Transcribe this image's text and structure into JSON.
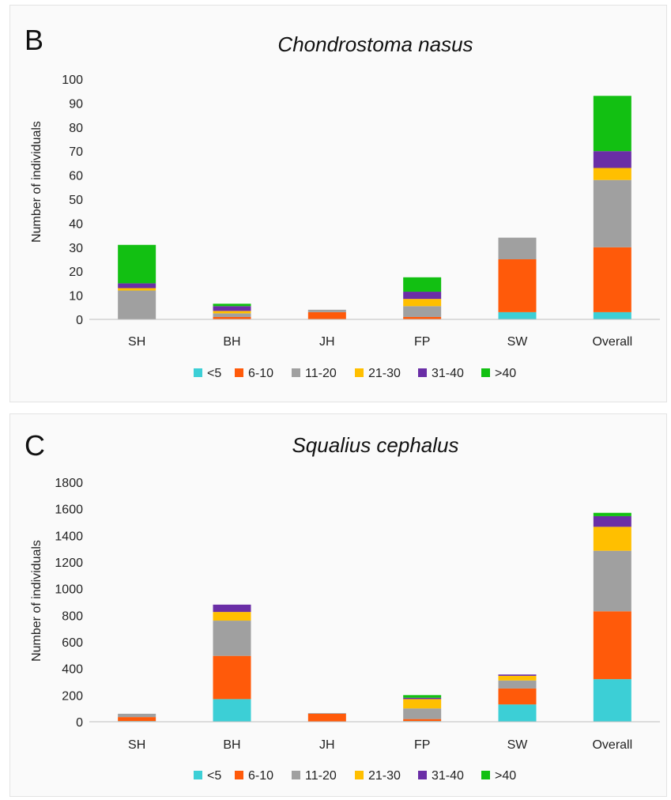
{
  "colors": {
    "<5": "#3ccfd6",
    "6-10": "#ff5a0a",
    "11-20": "#a0a0a0",
    "21-30": "#ffbf00",
    "31-40": "#6a2ea6",
    ">40": "#12c012"
  },
  "chart_data": [
    {
      "type": "bar",
      "stacked": true,
      "panel_letter": "B",
      "title": "Chondrostoma nasus",
      "ylabel": "Number of individuals",
      "ylim": [
        0,
        100
      ],
      "yticks": [
        0,
        10,
        20,
        30,
        40,
        50,
        60,
        70,
        80,
        90,
        100
      ],
      "categories": [
        "SH",
        "BH",
        "JH",
        "FP",
        "SW",
        "Overall"
      ],
      "legend_position": "bottom",
      "series": [
        {
          "name": "<5",
          "values": [
            0,
            0,
            0,
            0,
            3,
            3
          ]
        },
        {
          "name": "6-10",
          "values": [
            0,
            1,
            3,
            1,
            22,
            27
          ]
        },
        {
          "name": "11-20",
          "values": [
            12,
            1.5,
            1,
            4.5,
            9,
            28
          ]
        },
        {
          "name": "21-30",
          "values": [
            1,
            1,
            0,
            3,
            0,
            5
          ]
        },
        {
          "name": "31-40",
          "values": [
            2,
            2,
            0,
            3,
            0,
            7
          ]
        },
        {
          "name": ">40",
          "values": [
            16,
            1,
            0,
            6,
            0,
            23
          ]
        }
      ]
    },
    {
      "type": "bar",
      "stacked": true,
      "panel_letter": "C",
      "title": "Squalius cephalus",
      "ylabel": "Number of individuals",
      "ylim": [
        0,
        1800
      ],
      "yticks": [
        0,
        200,
        400,
        600,
        800,
        1000,
        1200,
        1400,
        1600,
        1800
      ],
      "categories": [
        "SH",
        "BH",
        "JH",
        "FP",
        "SW",
        "Overall"
      ],
      "legend_position": "bottom",
      "series": [
        {
          "name": "<5",
          "values": [
            5,
            170,
            0,
            5,
            130,
            320
          ]
        },
        {
          "name": "6-10",
          "values": [
            30,
            325,
            60,
            15,
            120,
            510
          ]
        },
        {
          "name": "11-20",
          "values": [
            25,
            265,
            5,
            80,
            60,
            455
          ]
        },
        {
          "name": "21-30",
          "values": [
            0,
            65,
            0,
            70,
            35,
            180
          ]
        },
        {
          "name": "31-40",
          "values": [
            0,
            55,
            0,
            10,
            10,
            80
          ]
        },
        {
          "name": ">40",
          "values": [
            0,
            0,
            0,
            20,
            0,
            25
          ]
        }
      ]
    }
  ]
}
